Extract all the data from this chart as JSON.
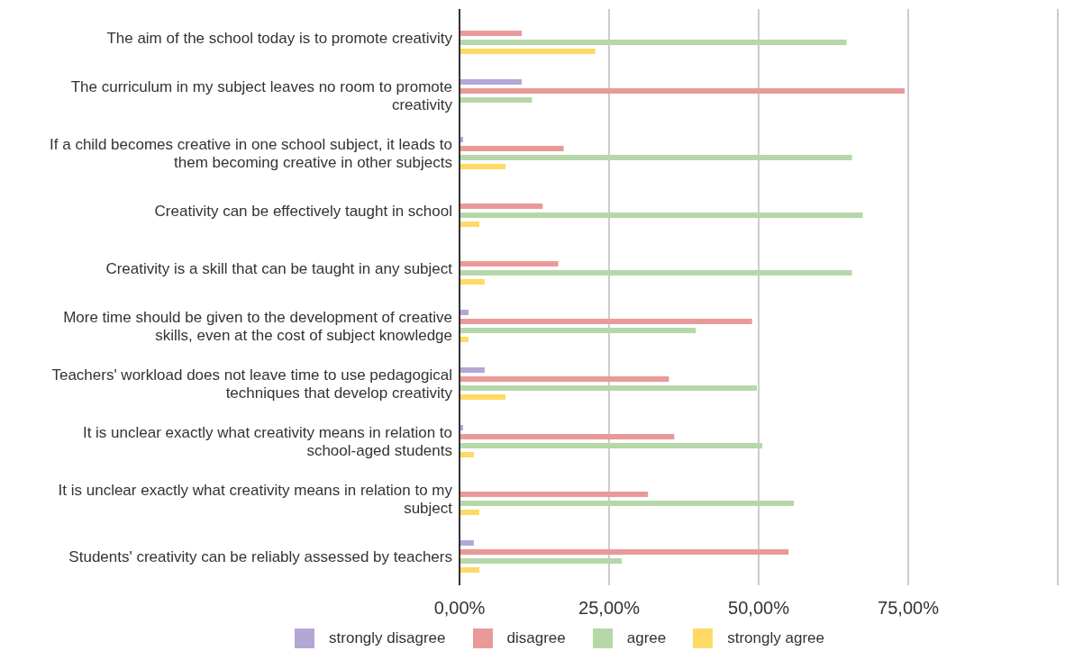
{
  "chart_data": {
    "type": "bar",
    "orientation": "horizontal",
    "categories": [
      "The aim of the school today is to promote creativity",
      "The curriculum in my subject leaves no room to promote creativity",
      "If a child becomes creative in one school subject, it leads to them becoming creative in other subjects",
      "Creativity can be effectively taught in school",
      "Creativity is a skill that can be taught in any subject",
      "More time should be given to the development of creative skills, even at the cost of subject knowledge",
      "Teachers' workload does not leave time to use pedagogical techniques that develop creativity",
      "It is unclear exactly what creativity means in relation to school-aged students",
      "It is unclear exactly what creativity means in relation to my subject",
      "Students' creativity can be reliably assessed by teachers"
    ],
    "series": [
      {
        "name": "strongly disagree",
        "color": "#b4a7d6",
        "values": [
          null,
          10.4,
          0.6,
          null,
          null,
          1.5,
          4.2,
          0.6,
          null,
          2.4
        ]
      },
      {
        "name": "disagree",
        "color": "#ea9999",
        "values": [
          10.4,
          74.4,
          17.4,
          13.9,
          16.5,
          48.9,
          35.0,
          35.9,
          31.5,
          55.0
        ]
      },
      {
        "name": "agree",
        "color": "#b6d7a8",
        "values": [
          64.7,
          12.1,
          65.6,
          67.4,
          65.6,
          39.5,
          49.7,
          50.6,
          55.9,
          27.1
        ]
      },
      {
        "name": "strongly agree",
        "color": "#ffd966",
        "values": [
          22.7,
          null,
          7.7,
          3.3,
          4.2,
          1.5,
          7.7,
          2.4,
          3.3,
          3.3
        ]
      }
    ],
    "xlim": [
      0,
      100
    ],
    "xticks": [
      {
        "value": 0,
        "label": "0,00%"
      },
      {
        "value": 25,
        "label": "25,00%"
      },
      {
        "value": 50,
        "label": "50,00%"
      },
      {
        "value": 75,
        "label": "75,00%"
      },
      {
        "value": 100,
        "label": null
      }
    ],
    "grid": "x",
    "legend": "bottom"
  }
}
